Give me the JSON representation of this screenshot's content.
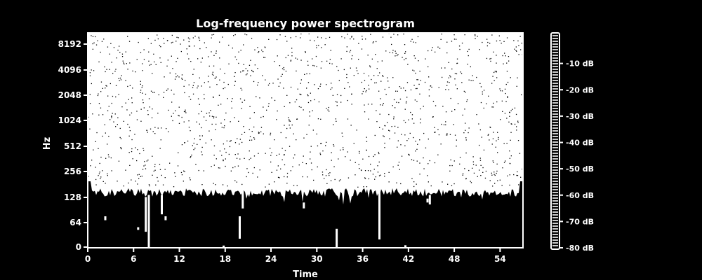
{
  "colors": {
    "background": "#000000",
    "foreground": "#ffffff"
  },
  "chart_data": {
    "type": "heatmap",
    "title": "Log-frequency power spectrogram",
    "xlabel": "Time",
    "ylabel": "Hz",
    "xlim": [
      0,
      57
    ],
    "x_ticks": [
      0,
      6,
      12,
      18,
      24,
      30,
      36,
      42,
      48,
      54
    ],
    "x_tick_labels": [
      "0",
      "6",
      "12",
      "18",
      "24",
      "30",
      "36",
      "42",
      "48",
      "54"
    ],
    "y_scale": "symlog",
    "y_ticks": [
      0,
      64,
      128,
      256,
      512,
      1024,
      2048,
      4096,
      8192
    ],
    "y_tick_labels": [
      "0",
      "64",
      "128",
      "256",
      "512",
      "1024",
      "2048",
      "4096",
      "8192"
    ],
    "colorbar": {
      "range_db": [
        -80,
        0
      ],
      "ticks": [
        -10,
        -20,
        -30,
        -40,
        -50,
        -60,
        -70,
        -80
      ],
      "tick_labels": [
        "-10 dB",
        "-20 dB",
        "-30 dB",
        "-40 dB",
        "-50 dB",
        "-60 dB",
        "-70 dB",
        "-80 dB"
      ]
    },
    "energy_floor_hz": 180,
    "low_freq_events": [
      {
        "time": 2.3,
        "hz_low": 70,
        "hz_high": 80
      },
      {
        "time": 6.6,
        "hz_low": 45,
        "hz_high": 52
      },
      {
        "time": 7.6,
        "hz_low": 40,
        "hz_high": 130
      },
      {
        "time": 8.0,
        "hz_low": 0,
        "hz_high": 140
      },
      {
        "time": 9.7,
        "hz_low": 85,
        "hz_high": 140
      },
      {
        "time": 10.2,
        "hz_low": 70,
        "hz_high": 80
      },
      {
        "time": 17.8,
        "hz_low": 0,
        "hz_high": 4
      },
      {
        "time": 19.9,
        "hz_low": 22,
        "hz_high": 80
      },
      {
        "time": 20.3,
        "hz_low": 100,
        "hz_high": 160
      },
      {
        "time": 28.3,
        "hz_low": 100,
        "hz_high": 115
      },
      {
        "time": 32.6,
        "hz_low": 0,
        "hz_high": 48
      },
      {
        "time": 38.2,
        "hz_low": 20,
        "hz_high": 155
      },
      {
        "time": 41.6,
        "hz_low": 0,
        "hz_high": 5
      },
      {
        "time": 44.5,
        "hz_low": 115,
        "hz_high": 125
      },
      {
        "time": 44.8,
        "hz_low": 110,
        "hz_high": 140
      }
    ]
  }
}
